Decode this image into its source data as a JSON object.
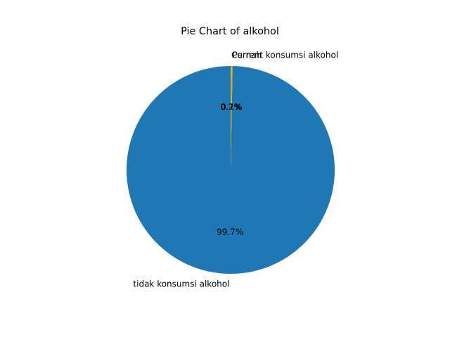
{
  "chart_data": {
    "type": "pie",
    "title": "Pie Chart of alkohol",
    "categories": [
      "tidak konsumsi alkohol",
      "Pernah",
      "Current konsumsi alkohol"
    ],
    "values": [
      99.7,
      0.1,
      0.2
    ],
    "pct_labels": [
      "99.7%",
      "0.1%",
      "0.2%"
    ],
    "colors": [
      "#1f77b4",
      "#ff7f0e",
      "#bcbd22"
    ],
    "start_angle": 90,
    "direction": "counterclockwise"
  }
}
